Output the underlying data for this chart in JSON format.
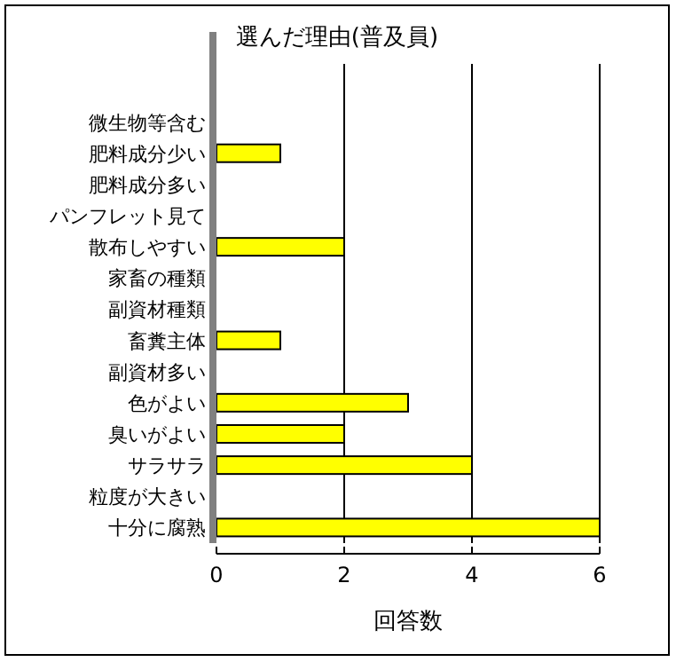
{
  "chart_data": {
    "type": "bar",
    "orientation": "horizontal",
    "title": "選んだ理由(普及員)",
    "xlabel": "回答数",
    "categories": [
      "微生物等含む",
      "肥料成分少い",
      "肥料成分多い",
      "パンフレット見て",
      "散布しやすい",
      "家畜の種類",
      "副資材種類",
      "畜糞主体",
      "副資材多い",
      "色がよい",
      "臭いがよい",
      "サラサラ",
      "粒度が大きい",
      "十分に腐熟"
    ],
    "values": [
      0,
      1,
      0,
      0,
      2,
      0,
      0,
      1,
      0,
      3,
      2,
      4,
      0,
      6
    ],
    "color": "#ffff00",
    "xlim": [
      0,
      6
    ],
    "xticks": [
      0,
      2,
      4,
      6
    ],
    "grid": "x"
  }
}
